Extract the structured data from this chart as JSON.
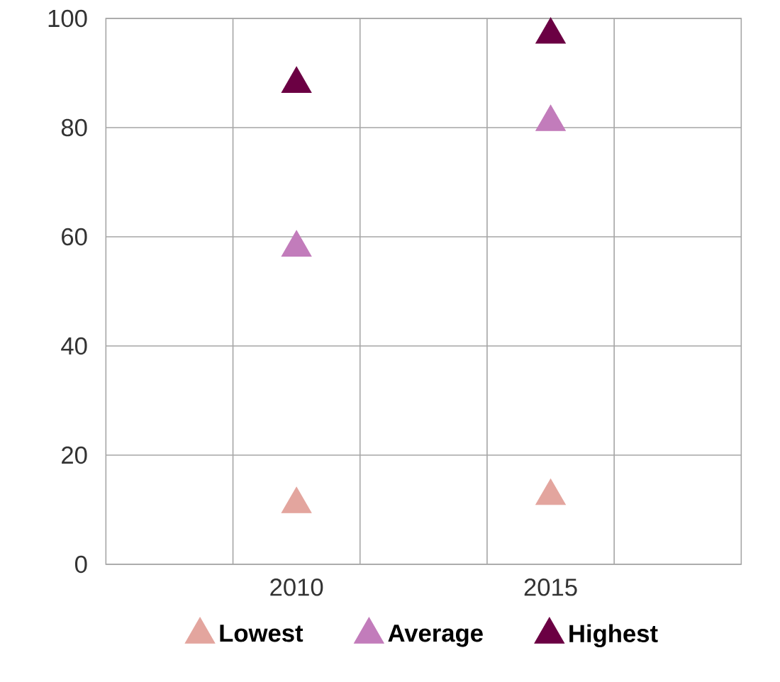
{
  "chart_data": {
    "type": "scatter",
    "categories": [
      null,
      "2010",
      null,
      "2015",
      null
    ],
    "series": [
      {
        "name": "Lowest",
        "color": "#e3a59e",
        "values": [
          null,
          11,
          null,
          12.5,
          null
        ]
      },
      {
        "name": "Average",
        "color": "#c27cbb",
        "values": [
          null,
          58,
          null,
          81,
          null
        ]
      },
      {
        "name": "Highest",
        "color": "#6b0043",
        "values": [
          null,
          88,
          null,
          97,
          null
        ]
      }
    ],
    "ylim": [
      0,
      100
    ],
    "yticks": [
      0,
      20,
      40,
      60,
      80,
      100
    ],
    "grid": true,
    "legend": "bottom",
    "marker": "triangle"
  }
}
